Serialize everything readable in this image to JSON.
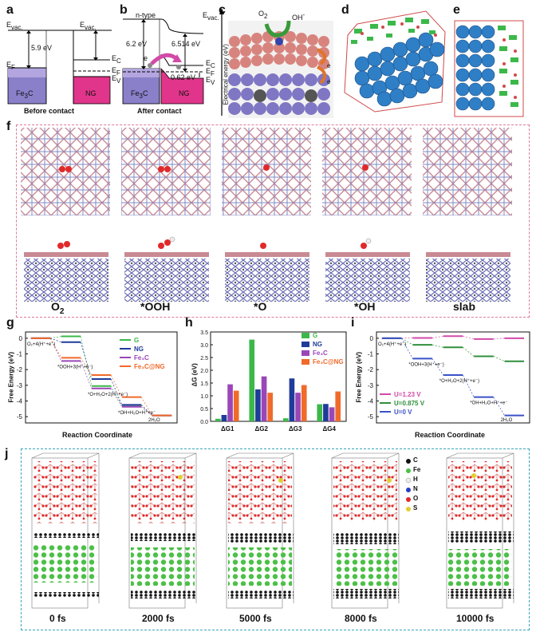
{
  "panels": {
    "a": {
      "label": "a",
      "evac": "E",
      "evac_sub": "vac.",
      "evac_right": "E",
      "work_left": "5.9 eV",
      "ef_left": "E",
      "ef_sub": "F",
      "ec": "E",
      "ec_sub": "C",
      "ef_right": "E",
      "ef_right_sub": "F",
      "ev": "E",
      "ev_sub": "V",
      "material_left": "Fe",
      "material_left_sub": "3",
      "material_left_tail": "C",
      "material_right": "NG",
      "caption": "Before contact"
    },
    "b": {
      "label": "b",
      "ntype": "n-type",
      "evac": "E",
      "evac_sub": "vac.",
      "work_left": "6.2 eV",
      "work_right": "6.514 eV",
      "ec": "E",
      "ec_sub": "C",
      "ef_right": "E",
      "ef_right_sub": "F",
      "gap": "0.62 eV",
      "ev": "E",
      "ev_sub": "V",
      "electron": "e",
      "material_left": "Fe",
      "material_left_sub": "3",
      "material_left_tail": "C",
      "material_right": "NG",
      "caption": "After contact"
    },
    "c": {
      "label": "c",
      "o2": "O",
      "o2_sub": "2",
      "oh": "OH",
      "oh_sup": "-",
      "electron": "e",
      "axis": "Electrical energy (eV)"
    },
    "d": {
      "label": "d"
    },
    "e": {
      "label": "e"
    },
    "f": {
      "label": "f",
      "structures": [
        "O",
        "*OOH",
        "*O",
        "*OH",
        "slab"
      ],
      "first_sub": "2"
    },
    "g": {
      "label": "g",
      "ylabel": "Free Energy (eV)",
      "xlabel": "Reaction Coordinate",
      "yticks": [
        "0",
        "-1",
        "-2",
        "-3",
        "-4",
        "-5"
      ],
      "steps": [
        "O₂+4(H⁺+e⁻)",
        "*OOH+3(H⁺+e⁻)",
        "*O+H₂O+2(H⁺+e⁻)",
        "*OH+H₂O+H⁺+e⁻",
        "2H₂O"
      ],
      "legend": [
        "G",
        "NG",
        "Fe₃C",
        "Fe₃C@NG"
      ]
    },
    "h": {
      "label": "h",
      "ylabel": "ΔG (eV)",
      "yticks": [
        "0.0",
        "0.5",
        "1.0",
        "1.5",
        "2.0",
        "2.5",
        "3.0",
        "3.5"
      ],
      "legend": [
        "G",
        "NG",
        "Fe₃C",
        "Fe₃C@NG"
      ]
    },
    "i": {
      "label": "i",
      "ylabel": "Free Energy (eV)",
      "xlabel": "Reaction Coordinate",
      "yticks": [
        "0",
        "-1",
        "-2",
        "-3",
        "-4",
        "-5"
      ],
      "steps": [
        "O₂+4(H⁺+e⁻)",
        "*OOH+3(H⁺+e⁻)",
        "*O+H₂O+2(H⁺+e⁻)",
        "*OH+H₂O+H⁺+e⁻",
        "2H₂O"
      ],
      "legend": [
        "U=1.23 V",
        "U=0.875 V",
        "U=0 V"
      ]
    },
    "j": {
      "label": "j",
      "times": [
        "0 fs",
        "2000 fs",
        "5000 fs",
        "8000 fs",
        "10000 fs"
      ],
      "legend": [
        "C",
        "Fe",
        "H",
        "N",
        "O",
        "S"
      ]
    }
  },
  "colors": {
    "G": "#3cb84a",
    "NG": "#1f3c9a",
    "Fe3C": "#9b46b8",
    "Fe3C_NG": "#f06a2a",
    "u123": "#d24aa8",
    "u0875": "#2f8f3a",
    "u0": "#3a52c8",
    "fe3c_fill": "#8a7fc9",
    "ng_fill": "#e0358a",
    "dash_pink": "#e07aa0",
    "dash_blue": "#39a6b8"
  },
  "chart_data": [
    {
      "type": "line",
      "title": "g",
      "xlabel": "Reaction Coordinate",
      "ylabel": "Free Energy (eV)",
      "ylim": [
        -5.4,
        0.4
      ],
      "categories": [
        "O₂+4(H⁺+e⁻)",
        "*OOH+3(H⁺+e⁻)",
        "*O+H₂O+2(H⁺+e⁻)",
        "*OH+H₂O+H⁺+e⁻",
        "2H₂O"
      ],
      "series": [
        {
          "name": "G",
          "values": [
            0,
            0.12,
            -3.05,
            -4.27,
            -4.92
          ]
        },
        {
          "name": "NG",
          "values": [
            0,
            -0.25,
            -2.6,
            -4.25,
            -4.92
          ]
        },
        {
          "name": "Fe₃C",
          "values": [
            0,
            -1.45,
            -3.2,
            -4.37,
            -4.92
          ]
        },
        {
          "name": "Fe₃C@NG",
          "values": [
            0,
            -1.25,
            -2.35,
            -3.75,
            -4.92
          ]
        }
      ]
    },
    {
      "type": "bar",
      "title": "h",
      "ylabel": "ΔG (eV)",
      "ylim": [
        0,
        3.5
      ],
      "categories": [
        "ΔG1",
        "ΔG2",
        "ΔG3",
        "ΔG4"
      ],
      "series": [
        {
          "name": "G",
          "values": [
            0.1,
            3.2,
            0.12,
            0.67
          ]
        },
        {
          "name": "NG",
          "values": [
            0.25,
            1.25,
            1.68,
            0.68
          ]
        },
        {
          "name": "Fe₃C",
          "values": [
            1.45,
            1.76,
            1.12,
            0.55
          ]
        },
        {
          "name": "Fe₃C@NG",
          "values": [
            1.2,
            1.12,
            1.42,
            1.17
          ]
        }
      ]
    },
    {
      "type": "line",
      "title": "i",
      "xlabel": "Reaction Coordinate",
      "ylabel": "Free Energy (eV)",
      "ylim": [
        -5.4,
        0.4
      ],
      "categories": [
        "O₂+4(H⁺+e⁻)",
        "*OOH+3(H⁺+e⁻)",
        "*O+H₂O+2(H⁺+e⁻)",
        "*OH+H₂O+H⁺+e⁻",
        "2H₂O"
      ],
      "series": [
        {
          "name": "U=1.23 V",
          "values": [
            0,
            0.02,
            0.13,
            -0.05,
            0.0
          ]
        },
        {
          "name": "U=0.875 V",
          "values": [
            0,
            -0.42,
            -0.58,
            -1.15,
            -1.47
          ]
        },
        {
          "name": "U=0 V",
          "values": [
            0,
            -1.3,
            -2.35,
            -3.75,
            -4.92
          ]
        }
      ]
    }
  ]
}
